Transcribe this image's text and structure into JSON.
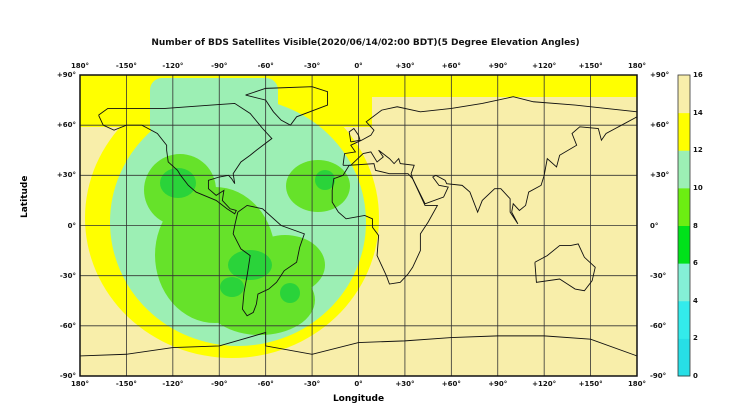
{
  "title": "Number of BDS Satellites Visible(2020/06/14/02:00 BDT)(5 Degree Elevation Angles)",
  "xlabel": "Longitude",
  "ylabel": "Latitude",
  "lon_ticks": [
    "180°",
    "-150°",
    "-120°",
    "-90°",
    "-60°",
    "-30°",
    "0°",
    "+30°",
    "+60°",
    "+90°",
    "+120°",
    "+150°",
    "180°"
  ],
  "lat_ticks": [
    "+90°",
    "+60°",
    "+30°",
    "0°",
    "-30°",
    "-60°",
    "-90°"
  ],
  "colorbar": {
    "ticks": [
      "0",
      "2",
      "4",
      "6",
      "8",
      "10",
      "12",
      "14",
      "16"
    ],
    "range": [
      0,
      16
    ],
    "colors": [
      "#27dfe6",
      "#33ebeb",
      "#84f0d6",
      "#00e21a",
      "#6cee12",
      "#9cefb4",
      "#ffff00",
      "#f8eeaa"
    ]
  },
  "map": {
    "lon_range": [
      -180,
      180
    ],
    "lat_range": [
      -90,
      90
    ],
    "grid_step_deg": 30,
    "background_level": "14-16"
  }
}
